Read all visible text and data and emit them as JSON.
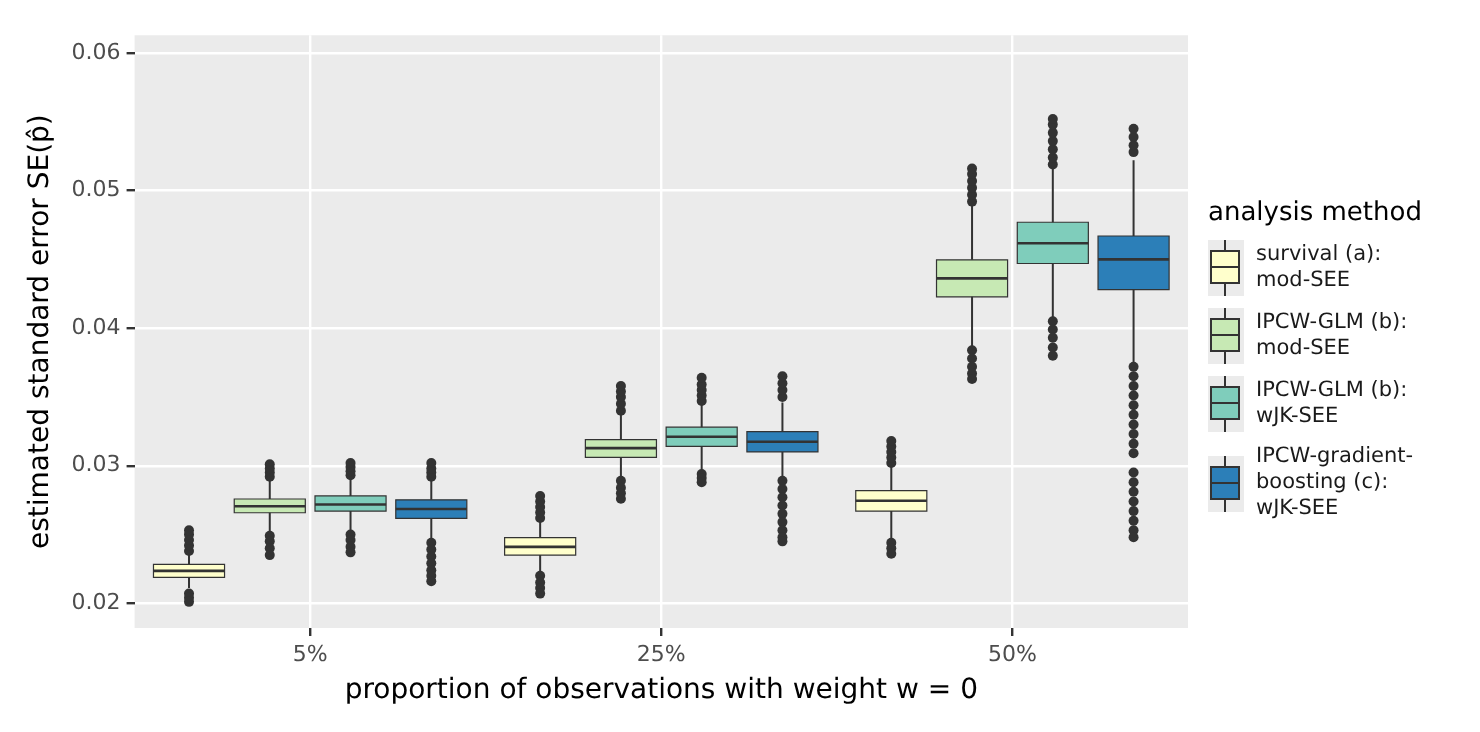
{
  "chart_data": {
    "type": "box",
    "xlabel": "proportion of observations with weight w = 0",
    "ylabel": "estimated standard error SE(p̂)",
    "legend_title": "analysis method",
    "legend": "right",
    "grid": true,
    "categories": [
      "5%",
      "25%",
      "50%"
    ],
    "ylim": [
      0.0182,
      0.0613
    ],
    "yticks": [
      0.02,
      0.03,
      0.04,
      0.05,
      0.06
    ],
    "series": [
      {
        "name": "survival (a): mod-SEE",
        "color": "#ffffcc",
        "boxes": [
          {
            "low": 0.0211,
            "q1": 0.02188,
            "median": 0.02235,
            "q3": 0.02282,
            "high": 0.0236,
            "outliers": [
              0.0238,
              0.0242,
              0.0246,
              0.025,
              0.0253,
              0.0207,
              0.0204,
              0.0201
            ]
          },
          {
            "low": 0.0222,
            "q1": 0.0235,
            "median": 0.0241,
            "q3": 0.02477,
            "high": 0.026,
            "outliers": [
              0.0262,
              0.0266,
              0.027,
              0.0274,
              0.0278,
              0.022,
              0.0215,
              0.0211,
              0.0207
            ]
          },
          {
            "low": 0.0246,
            "q1": 0.0267,
            "median": 0.02745,
            "q3": 0.02819,
            "high": 0.03,
            "outliers": [
              0.0302,
              0.0306,
              0.031,
              0.0314,
              0.0318,
              0.0244,
              0.024,
              0.0236
            ]
          }
        ]
      },
      {
        "name": "IPCW-GLM (b): mod-SEE",
        "color": "#c7e9b4",
        "boxes": [
          {
            "low": 0.0252,
            "q1": 0.02658,
            "median": 0.02705,
            "q3": 0.02758,
            "high": 0.029,
            "outliers": [
              0.0292,
              0.0295,
              0.0298,
              0.0301,
              0.0249,
              0.0245,
              0.024,
              0.0235
            ]
          },
          {
            "low": 0.0291,
            "q1": 0.0306,
            "median": 0.03128,
            "q3": 0.0319,
            "high": 0.0338,
            "outliers": [
              0.034,
              0.0345,
              0.035,
              0.0354,
              0.0358,
              0.0289,
              0.0284,
              0.028,
              0.0276
            ]
          },
          {
            "low": 0.0386,
            "q1": 0.04228,
            "median": 0.04362,
            "q3": 0.04497,
            "high": 0.0489,
            "outliers": [
              0.0492,
              0.0497,
              0.0502,
              0.0507,
              0.0512,
              0.0516,
              0.0384,
              0.0378,
              0.0372,
              0.0367,
              0.0363
            ]
          }
        ]
      },
      {
        "name": "IPCW-GLM (b): wJK-SEE",
        "color": "#7fcdbb",
        "boxes": [
          {
            "low": 0.0253,
            "q1": 0.0267,
            "median": 0.02718,
            "q3": 0.0278,
            "high": 0.0291,
            "outliers": [
              0.0293,
              0.0296,
              0.0299,
              0.0302,
              0.025,
              0.0246,
              0.0241,
              0.0237
            ]
          },
          {
            "low": 0.0296,
            "q1": 0.0314,
            "median": 0.0321,
            "q3": 0.0328,
            "high": 0.0345,
            "outliers": [
              0.0347,
              0.0351,
              0.0355,
              0.0359,
              0.0364,
              0.0294,
              0.0291,
              0.0288
            ]
          },
          {
            "low": 0.0408,
            "q1": 0.0447,
            "median": 0.04617,
            "q3": 0.0477,
            "high": 0.0516,
            "outliers": [
              0.0519,
              0.0524,
              0.053,
              0.0536,
              0.0542,
              0.0548,
              0.0552,
              0.0405,
              0.0399,
              0.0393,
              0.0386,
              0.038
            ]
          }
        ]
      },
      {
        "name": "IPCW-gradient-boosting (c): wJK-SEE",
        "color": "#2c7fb8",
        "boxes": [
          {
            "low": 0.0246,
            "q1": 0.02617,
            "median": 0.02685,
            "q3": 0.02752,
            "high": 0.029,
            "outliers": [
              0.0292,
              0.0295,
              0.0298,
              0.0302,
              0.0244,
              0.0239,
              0.0234,
              0.0229,
              0.0224,
              0.022,
              0.0216
            ]
          },
          {
            "low": 0.0291,
            "q1": 0.031,
            "median": 0.03174,
            "q3": 0.03248,
            "high": 0.0346,
            "outliers": [
              0.035,
              0.0355,
              0.036,
              0.0365,
              0.0289,
              0.0283,
              0.0277,
              0.0271,
              0.0265,
              0.0259,
              0.0253,
              0.0248,
              0.0245
            ]
          },
          {
            "low": 0.0374,
            "q1": 0.0428,
            "median": 0.045,
            "q3": 0.0467,
            "high": 0.0522,
            "outliers": [
              0.0528,
              0.0533,
              0.0539,
              0.0545,
              0.0372,
              0.0365,
              0.0358,
              0.0351,
              0.0344,
              0.0337,
              0.033,
              0.0323,
              0.0316,
              0.0309,
              0.0295,
              0.0288,
              0.0281,
              0.0274,
              0.0267,
              0.026,
              0.0253,
              0.0248
            ]
          }
        ]
      }
    ]
  }
}
